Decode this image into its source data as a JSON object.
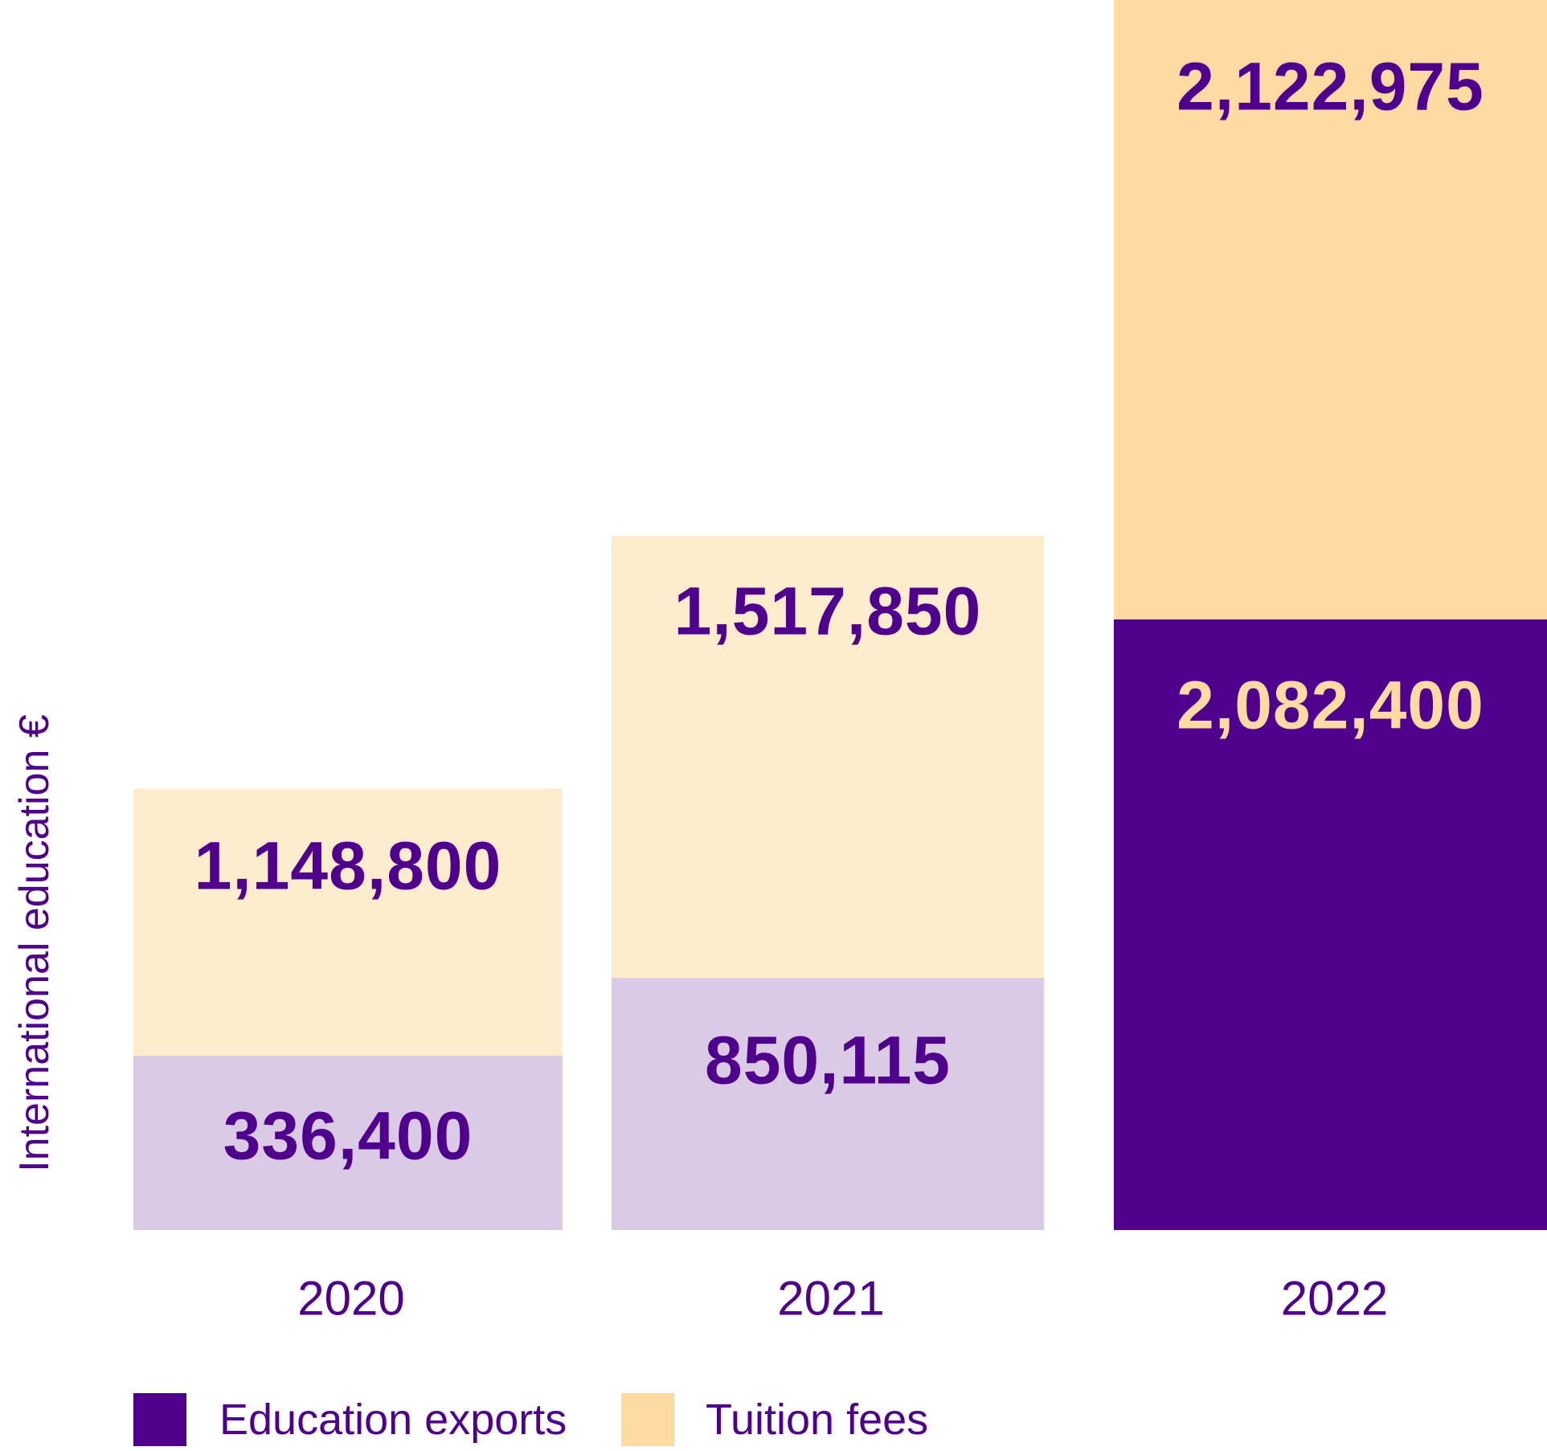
{
  "chart_data": {
    "type": "bar",
    "stacked": true,
    "ylabel": "International education €",
    "categories": [
      "2020",
      "2021",
      "2022"
    ],
    "series": [
      {
        "name": "Education exports",
        "values": [
          336400,
          850115,
          2082400
        ]
      },
      {
        "name": "Tuition fees",
        "values": [
          1148800,
          1517850,
          2122975
        ]
      }
    ],
    "value_labels": {
      "exports": [
        "336,400",
        "850,115",
        "2,082,400"
      ],
      "tuition": [
        "1,148,800",
        "1,517,850",
        "2,122,975"
      ]
    },
    "grid": false,
    "legend": "bottom-left",
    "colors": {
      "exports_highlight": "#4f008c",
      "exports_faded": "#dacae6",
      "tuition_highlight": "#ffdaa3",
      "tuition_faded": "#ffebce",
      "text": "#4f008c"
    }
  }
}
